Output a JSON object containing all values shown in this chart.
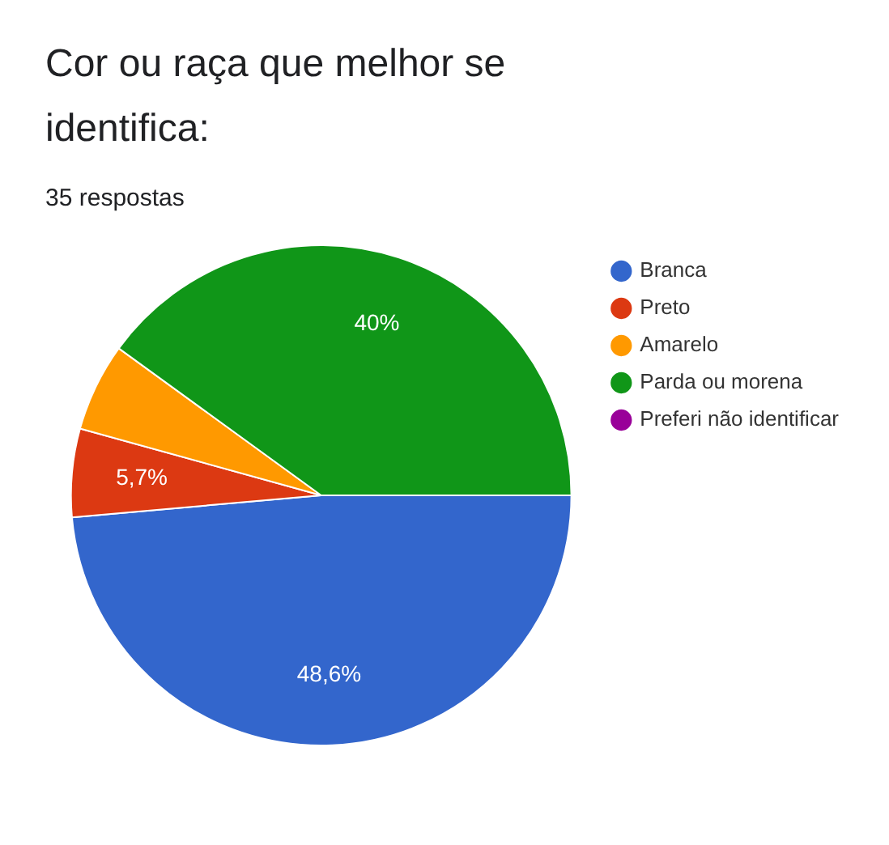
{
  "chart_data": {
    "type": "pie",
    "title": "Cor ou raça que melhor se identifica:",
    "subtitle": "35 respostas",
    "categories": [
      "Branca",
      "Preto",
      "Amarelo",
      "Parda ou morena",
      "Preferi não identificar"
    ],
    "values": [
      48.6,
      5.7,
      5.7,
      40,
      0
    ],
    "colors": [
      "#3366cc",
      "#dc3912",
      "#ff9900",
      "#109618",
      "#990099"
    ],
    "value_labels": [
      "48,6%",
      "5,7%",
      null,
      "40%",
      null
    ],
    "legend": "right"
  }
}
